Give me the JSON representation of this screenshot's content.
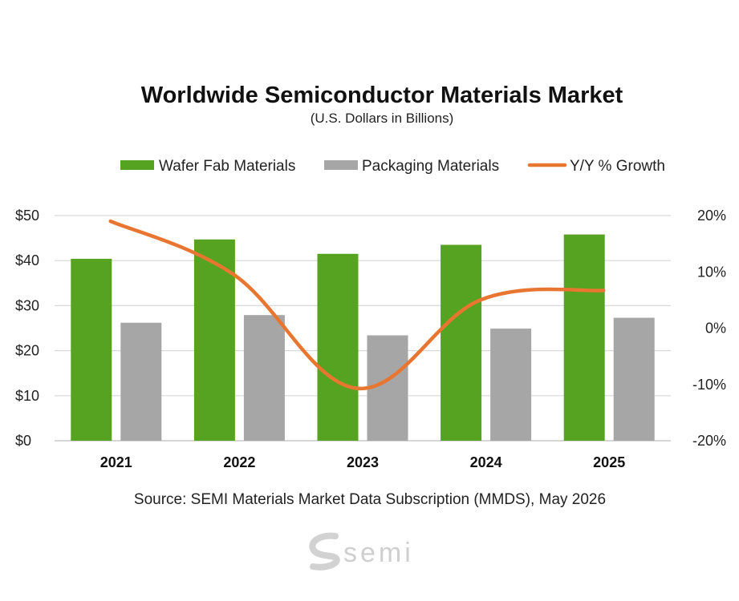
{
  "chart_data": {
    "type": "bar",
    "title": "Worldwide Semiconductor Materials Market",
    "subtitle": "(U.S. Dollars in Billions)",
    "categories": [
      "2021",
      "2022",
      "2023",
      "2024",
      "2025"
    ],
    "series": [
      {
        "name": "Wafer Fab Materials",
        "type": "bar",
        "axis": "left",
        "color": "#56a321",
        "values": [
          40.4,
          44.7,
          41.5,
          43.5,
          45.8
        ]
      },
      {
        "name": "Packaging  Materials",
        "type": "bar",
        "axis": "left",
        "color": "#a6a6a6",
        "values": [
          26.2,
          27.9,
          23.4,
          24.9,
          27.3
        ]
      },
      {
        "name": "Y/Y % Growth",
        "type": "line",
        "axis": "right",
        "color": "#e87631",
        "values": [
          19.0,
          9.5,
          -10.7,
          5.0,
          6.7
        ]
      }
    ],
    "y_left": {
      "ylim": [
        0,
        50
      ],
      "ticks": [
        0,
        10,
        20,
        30,
        40,
        50
      ],
      "tick_labels": [
        "$0",
        "$10",
        "$20",
        "$30",
        "$40",
        "$50"
      ]
    },
    "y_right": {
      "ylim": [
        -20,
        20
      ],
      "ticks": [
        -20,
        -10,
        0,
        10,
        20
      ],
      "tick_labels": [
        "-20%",
        "-10%",
        "0%",
        "10%",
        "20%"
      ]
    },
    "xlabel": "",
    "ylabel": "",
    "grid": true,
    "legend_position": "top-center"
  },
  "source_note": "Source:  SEMI Materials Market Data Subscription (MMDS), May 2026",
  "logo": {
    "text": "semi",
    "color": "#cfcfcf"
  }
}
